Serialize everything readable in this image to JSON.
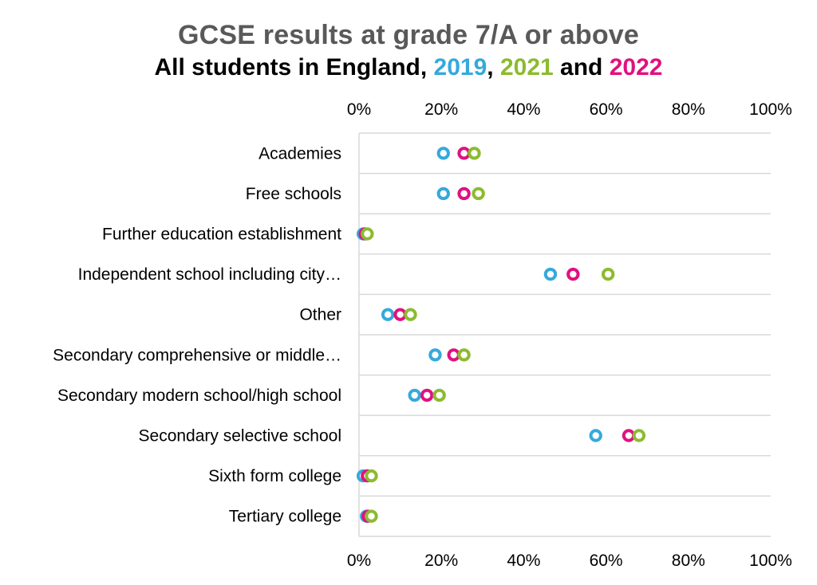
{
  "title": "GCSE results at grade 7/A or above",
  "subtitle": {
    "prefix": "All students in England, ",
    "year1": "2019",
    "sep1": ", ",
    "year2": "2021",
    "sep2": " and ",
    "year3": "2022"
  },
  "colors": {
    "2019": "#35a9dc",
    "2021": "#8cbb2f",
    "2022": "#e0117f",
    "title": "#595959",
    "grid": "#d9d9d9"
  },
  "chart_data": {
    "type": "scatter",
    "orientation": "horizontal dot plot",
    "title": "GCSE results at grade 7/A or above",
    "subtitle": "All students in England, 2019, 2021 and 2022",
    "xlim": [
      0,
      100
    ],
    "xticks": [
      "0%",
      "20%",
      "40%",
      "60%",
      "80%",
      "100%"
    ],
    "xtick_values": [
      0,
      20,
      40,
      60,
      80,
      100
    ],
    "categories": [
      "Academies",
      "Free schools",
      "Further education establishment",
      "Independent school including city…",
      "Other",
      "Secondary comprehensive or middle…",
      "Secondary modern school/high school",
      "Secondary selective school",
      "Sixth form college",
      "Tertiary college"
    ],
    "series": [
      {
        "name": "2019",
        "values": [
          20.5,
          20.5,
          1.0,
          46.5,
          7.0,
          18.5,
          13.5,
          57.5,
          1.0,
          1.8
        ]
      },
      {
        "name": "2022",
        "values": [
          25.5,
          25.5,
          1.5,
          52.0,
          10.0,
          23.0,
          16.5,
          65.5,
          2.0,
          2.2
        ]
      },
      {
        "name": "2021",
        "values": [
          28.0,
          29.0,
          2.0,
          60.5,
          12.5,
          25.5,
          19.5,
          68.0,
          3.0,
          3.0
        ]
      }
    ],
    "grid": true,
    "axis_position": "top and bottom"
  }
}
